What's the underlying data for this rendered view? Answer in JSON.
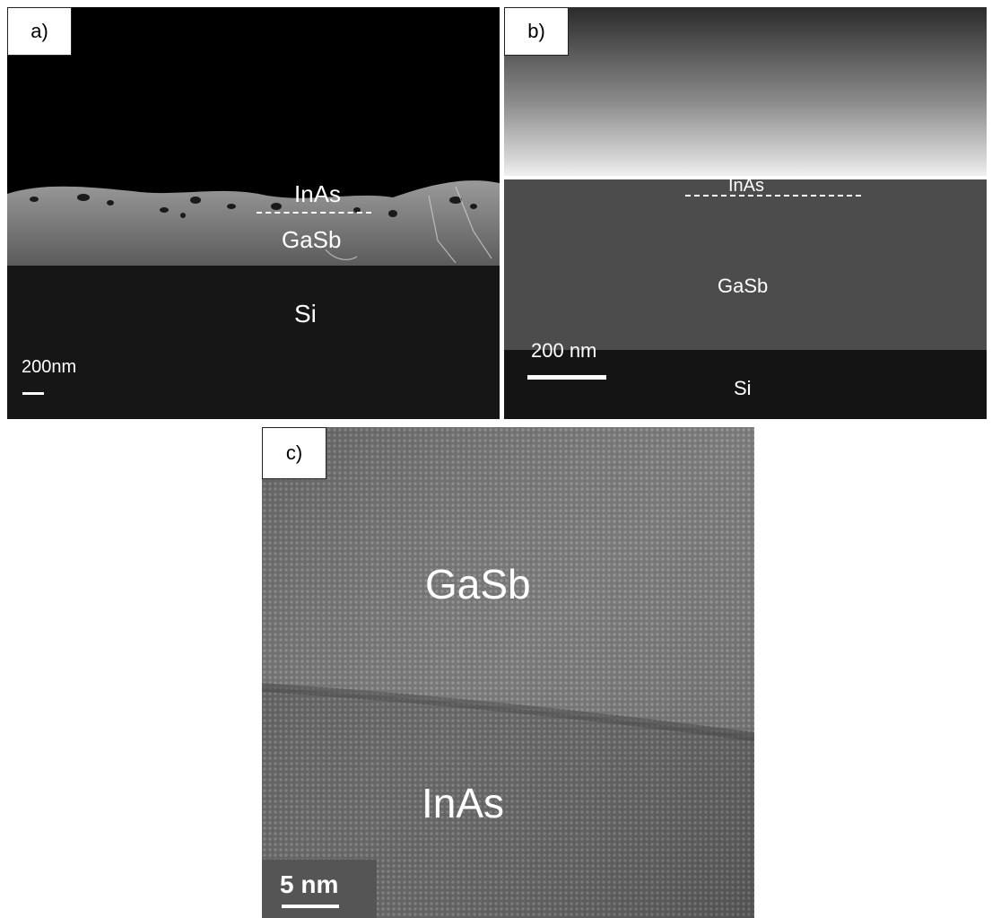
{
  "panels": [
    {
      "tag": "a)",
      "layers": [
        "InAs",
        "GaSb",
        "Si"
      ],
      "scale_bar": "200nm"
    },
    {
      "tag": "b)",
      "layers": [
        "InAs",
        "GaSb",
        "Si"
      ],
      "scale_bar": "200 nm"
    },
    {
      "tag": "c)",
      "layers": [
        "GaSb",
        "InAs"
      ],
      "scale_bar": "5 nm"
    }
  ]
}
